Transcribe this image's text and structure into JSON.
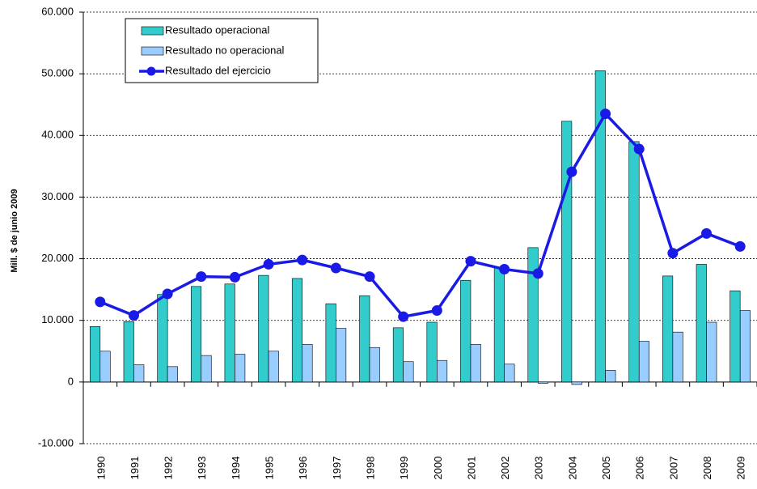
{
  "chart_data": {
    "type": "bar",
    "y_label": "Mill. $ de junio 2009",
    "categories": [
      "1990",
      "1991",
      "1992",
      "1993",
      "1994",
      "1995",
      "1996",
      "1997",
      "1998",
      "1999",
      "2000",
      "2001",
      "2002",
      "2003",
      "2004",
      "2005",
      "2006",
      "2007",
      "2008",
      "2009"
    ],
    "series": [
      {
        "name": "Resultado operacional",
        "type": "bar",
        "color": "#33CCCC",
        "values": [
          9000,
          9800,
          14200,
          15500,
          15900,
          17300,
          16800,
          12700,
          14000,
          8800,
          9700,
          16500,
          18600,
          21800,
          42300,
          50500,
          39000,
          17200,
          19100,
          14800
        ]
      },
      {
        "name": "Resultado no operacional",
        "type": "bar",
        "color": "#99CCFF",
        "values": [
          5000,
          2800,
          2500,
          4300,
          4500,
          5000,
          6100,
          8700,
          5600,
          3300,
          3500,
          6100,
          2900,
          -200,
          -400,
          1900,
          6600,
          8100,
          9700,
          11600
        ]
      },
      {
        "name": "Resultado del ejercicio",
        "type": "line",
        "color": "#1A1AE6",
        "values": [
          13000,
          10800,
          14300,
          17100,
          17000,
          19100,
          19800,
          18500,
          17100,
          10600,
          11600,
          19600,
          18300,
          17600,
          34100,
          43500,
          37800,
          20900,
          24100,
          22000
        ]
      }
    ],
    "ylim": [
      -10000,
      60000
    ],
    "yticks": [
      {
        "value": -10000,
        "label": "-10.000"
      },
      0,
      {
        "value": 10000,
        "label": "10.000"
      },
      {
        "value": 20000,
        "label": "20.000"
      },
      {
        "value": 30000,
        "label": "30.000"
      },
      {
        "value": 40000,
        "label": "40.000"
      },
      {
        "value": 50000,
        "label": "50.000"
      },
      {
        "value": 60000,
        "label": "60.000"
      }
    ],
    "grid": true
  }
}
